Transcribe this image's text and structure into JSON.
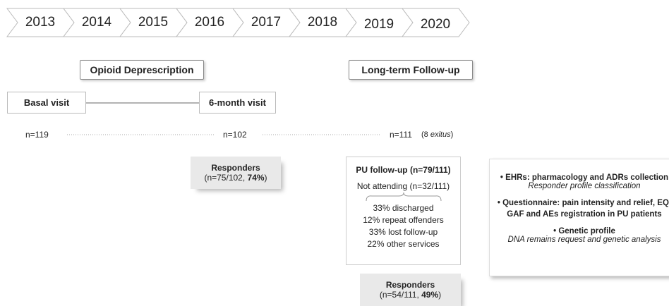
{
  "timeline": [
    "2013",
    "2014",
    "2015",
    "2016",
    "2017",
    "2018",
    "2019",
    "2020"
  ],
  "phases": [
    "Opioid Deprescription",
    "Long-term Follow-up"
  ],
  "visits": [
    "Basal visit",
    "6-month visit"
  ],
  "counts": [
    "n=119",
    "n=102",
    "n=111"
  ],
  "exitus_note": {
    "open": "(8 ",
    "word": "exitus",
    "close": ")"
  },
  "responders": [
    {
      "title": "Responders",
      "text": "(n=75/102, ",
      "percent": "74%",
      "close": ")"
    },
    {
      "title": "Responders",
      "text": "(n=54/111, ",
      "percent": "49%",
      "close": ")"
    }
  ],
  "pu_follow_up": {
    "title": "PU follow-up (n=79/111)",
    "not_attending": "Not attending (n=32/111)",
    "breakdown": [
      "33% discharged",
      "12% repeat offenders",
      "33% lost follow-up",
      "22% other services"
    ]
  },
  "summary": [
    {
      "heading": "EHRs: pharmacology and ADRs collection",
      "detail": "Responder profile classification"
    },
    {
      "heading": "Questionnaire: pain intensity and relief, EQ, GAF and AEs registration in PU patients"
    },
    {
      "heading": "Genetic profile",
      "detail": "DNA remains request and genetic analysis"
    }
  ]
}
